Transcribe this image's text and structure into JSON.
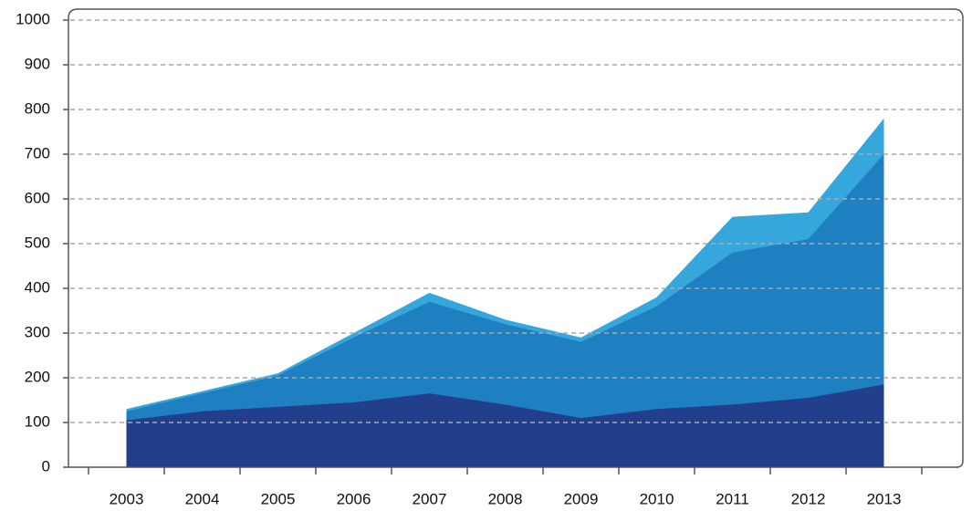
{
  "chart_data": {
    "type": "area",
    "categories": [
      "2003",
      "2004",
      "2005",
      "2006",
      "2007",
      "2008",
      "2009",
      "2010",
      "2011",
      "2012",
      "2013"
    ],
    "series": [
      {
        "color": "#35a7dd",
        "values": [
          130,
          170,
          210,
          300,
          390,
          330,
          290,
          380,
          560,
          570,
          780
        ]
      },
      {
        "color": "#1f80c1",
        "values": [
          125,
          165,
          205,
          290,
          370,
          320,
          280,
          360,
          480,
          510,
          700
        ]
      },
      {
        "color": "#233f8c",
        "values": [
          105,
          125,
          135,
          145,
          165,
          140,
          110,
          130,
          140,
          155,
          185
        ]
      }
    ],
    "ylim": [
      0,
      1000
    ],
    "yticks": [
      0,
      100,
      200,
      300,
      400,
      500,
      600,
      700,
      800,
      900,
      1000
    ],
    "grid": true
  }
}
